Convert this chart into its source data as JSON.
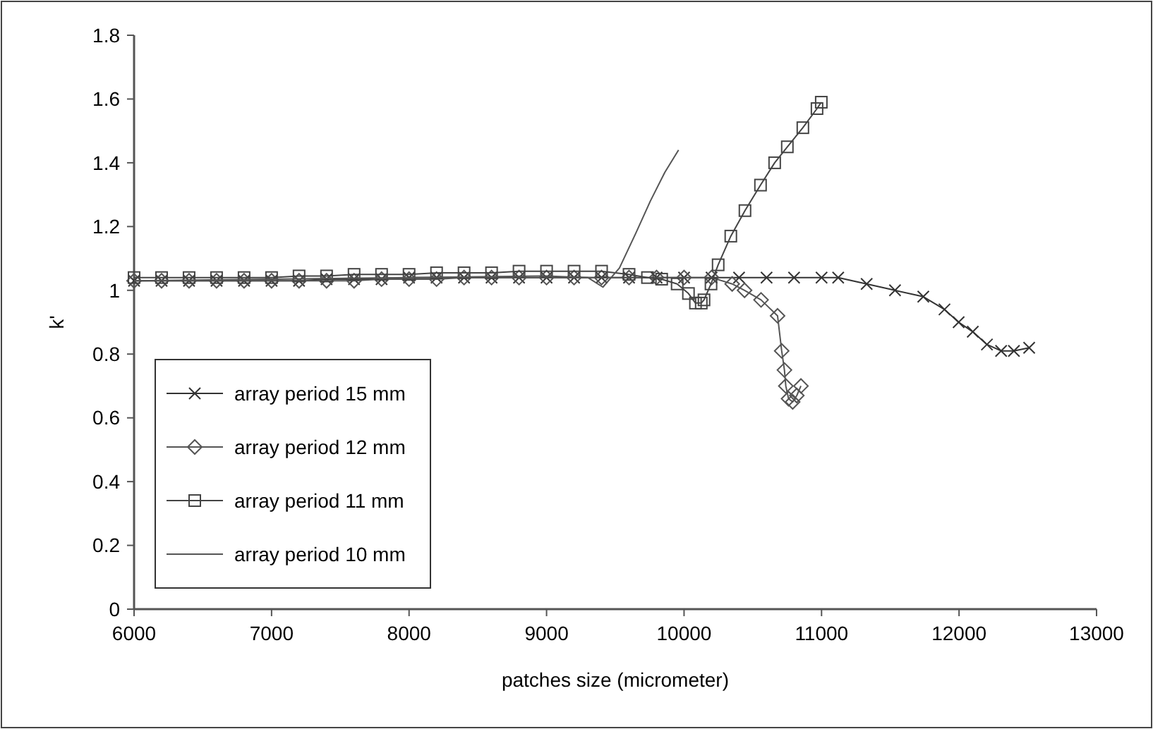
{
  "chart_data": {
    "type": "line",
    "xlabel": "patches size (micrometer)",
    "ylabel": "k'",
    "xlim": [
      6000,
      13000
    ],
    "xticks": [
      6000,
      7000,
      8000,
      9000,
      10000,
      11000,
      12000,
      13000
    ],
    "ylim": [
      0,
      1.8
    ],
    "yticks": [
      0,
      0.2,
      0.4,
      0.6,
      0.8,
      1,
      1.2,
      1.4,
      1.6,
      1.8
    ],
    "grid": false,
    "legend": "bottom left",
    "series": [
      {
        "name": "array period 15 mm",
        "color": "#333333",
        "marker": "cross",
        "x": [
          6000,
          6200,
          6400,
          6600,
          6800,
          7000,
          7200,
          7400,
          7600,
          7800,
          8000,
          8200,
          8400,
          8600,
          8800,
          9000,
          9200,
          9400,
          9600,
          9800,
          10000,
          10200,
          10400,
          10600,
          10800,
          11000,
          11121,
          11328,
          11534,
          11740,
          11894,
          11997,
          12100,
          12203,
          12306,
          12399,
          12510
        ],
        "values": [
          1.03,
          1.03,
          1.03,
          1.03,
          1.03,
          1.03,
          1.03,
          1.035,
          1.035,
          1.035,
          1.04,
          1.04,
          1.04,
          1.04,
          1.04,
          1.04,
          1.04,
          1.04,
          1.04,
          1.04,
          1.04,
          1.04,
          1.04,
          1.04,
          1.04,
          1.04,
          1.04,
          1.02,
          1.0,
          0.98,
          0.94,
          0.9,
          0.87,
          0.83,
          0.81,
          0.81,
          0.82
        ]
      },
      {
        "name": "array period 12 mm",
        "color": "#555555",
        "marker": "diamond",
        "x": [
          6000,
          6200,
          6400,
          6600,
          6800,
          7000,
          7200,
          7400,
          7600,
          7800,
          8000,
          8200,
          8400,
          8600,
          8800,
          9000,
          9200,
          9400,
          9600,
          9800,
          10000,
          10200,
          10350,
          10440,
          10560,
          10680,
          10710,
          10730,
          10740,
          10760,
          10790,
          10820,
          10850
        ],
        "values": [
          1.03,
          1.03,
          1.03,
          1.03,
          1.03,
          1.03,
          1.03,
          1.03,
          1.03,
          1.035,
          1.035,
          1.035,
          1.04,
          1.04,
          1.04,
          1.04,
          1.04,
          1.04,
          1.04,
          1.04,
          1.04,
          1.04,
          1.02,
          1.0,
          0.97,
          0.92,
          0.81,
          0.75,
          0.7,
          0.66,
          0.65,
          0.67,
          0.7
        ]
      },
      {
        "name": "array period 11 mm",
        "color": "#444444",
        "marker": "square",
        "x": [
          6000,
          6200,
          6400,
          6600,
          6800,
          7000,
          7200,
          7400,
          7600,
          7800,
          8000,
          8200,
          8400,
          8600,
          8800,
          9000,
          9200,
          9400,
          9600,
          9734,
          9837,
          9950,
          10032,
          10083,
          10125,
          10145,
          10196,
          10248,
          10340,
          10443,
          10556,
          10659,
          10751,
          10864,
          10967,
          10998
        ],
        "values": [
          1.04,
          1.04,
          1.04,
          1.04,
          1.04,
          1.04,
          1.045,
          1.045,
          1.05,
          1.05,
          1.05,
          1.055,
          1.055,
          1.055,
          1.06,
          1.06,
          1.06,
          1.06,
          1.05,
          1.04,
          1.035,
          1.02,
          0.99,
          0.96,
          0.96,
          0.97,
          1.02,
          1.08,
          1.17,
          1.25,
          1.33,
          1.4,
          1.45,
          1.51,
          1.57,
          1.59
        ]
      },
      {
        "name": "array period 10 mm",
        "color": "#555555",
        "marker": "none",
        "x": [
          6000,
          7000,
          8000,
          9000,
          9300,
          9410,
          9530,
          9650,
          9755,
          9860,
          9960
        ],
        "values": [
          1.03,
          1.035,
          1.04,
          1.045,
          1.04,
          1.01,
          1.07,
          1.18,
          1.28,
          1.37,
          1.44
        ]
      }
    ]
  }
}
